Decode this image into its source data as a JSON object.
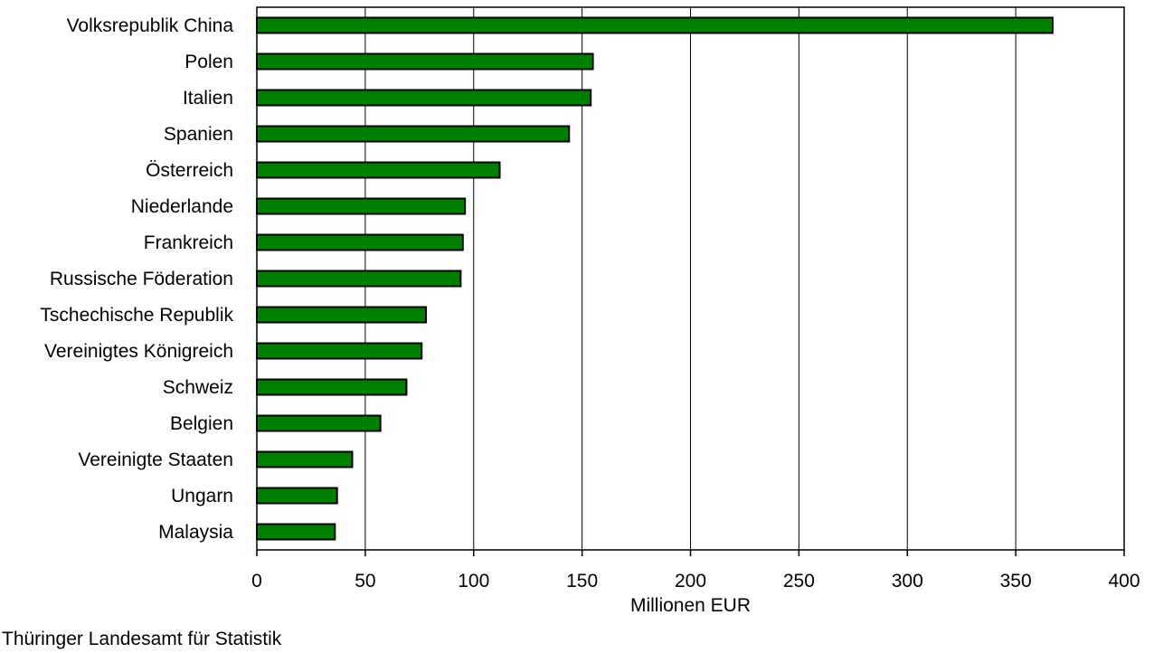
{
  "chart_data": {
    "type": "bar",
    "orientation": "horizontal",
    "categories": [
      "Volksrepublik China",
      "Polen",
      "Italien",
      "Spanien",
      "Österreich",
      "Niederlande",
      "Frankreich",
      "Russische Föderation",
      "Tschechische Republik",
      "Vereinigtes Königreich",
      "Schweiz",
      "Belgien",
      "Vereinigte Staaten",
      "Ungarn",
      "Malaysia"
    ],
    "values": [
      367,
      155,
      154,
      144,
      112,
      96,
      95,
      94,
      78,
      76,
      69,
      57,
      44,
      37,
      36
    ],
    "xlabel": "Millionen EUR",
    "ylabel": "",
    "xlim": [
      0,
      400
    ],
    "xticks": [
      0,
      50,
      100,
      150,
      200,
      250,
      300,
      350,
      400
    ],
    "grid": "vertical",
    "bar_color": "#008000",
    "bar_edge_color": "#000000"
  },
  "source": "Thüringer Landesamt für Statistik"
}
